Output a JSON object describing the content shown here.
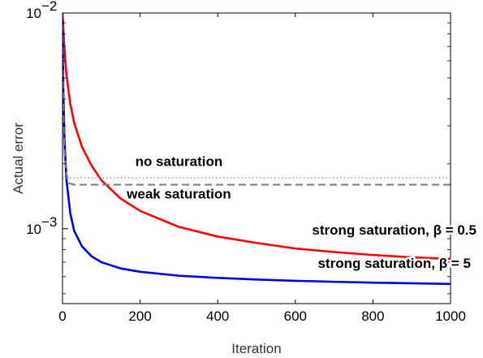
{
  "chart_data": {
    "type": "line",
    "xlabel": "Iteration",
    "ylabel": "Actual error",
    "xlim": [
      0,
      1000
    ],
    "ylim": [
      0.00045,
      0.01
    ],
    "yscale": "log",
    "grid": false,
    "x_ticks": [
      "0",
      "200",
      "400",
      "600",
      "800",
      "1000"
    ],
    "y_ticks": [
      {
        "base": "10",
        "exp": "−2",
        "value": 0.01
      },
      {
        "base": "10",
        "exp": "−3",
        "value": 0.001
      }
    ],
    "series": [
      {
        "color": "#ff0000",
        "style": "solid",
        "x": [
          0,
          5,
          10,
          20,
          30,
          50,
          75,
          100,
          150,
          200,
          300,
          400,
          500,
          600,
          700,
          800,
          900,
          1000
        ],
        "values": [
          0.01,
          0.0068,
          0.0052,
          0.0038,
          0.0031,
          0.0024,
          0.00196,
          0.00168,
          0.00138,
          0.00121,
          0.00102,
          0.00092,
          0.00086,
          0.00081,
          0.00078,
          0.000756,
          0.000738,
          0.000724
        ]
      },
      {
        "color": "#0000e6",
        "style": "solid",
        "x": [
          0,
          2,
          5,
          10,
          20,
          30,
          50,
          75,
          100,
          150,
          200,
          300,
          400,
          500,
          600,
          700,
          800,
          900,
          1000
        ],
        "values": [
          0.01,
          0.0045,
          0.0026,
          0.0017,
          0.00118,
          0.00098,
          0.00083,
          0.000745,
          0.0007,
          0.000655,
          0.000632,
          0.000606,
          0.000592,
          0.000582,
          0.000574,
          0.000568,
          0.000563,
          0.000559,
          0.000555
        ]
      },
      {
        "color": "#808080",
        "style": "dashed",
        "x": [
          0,
          1,
          2,
          3,
          5,
          8,
          15,
          30,
          1000
        ],
        "values": [
          0.01,
          0.0051,
          0.0036,
          0.0029,
          0.0023,
          0.0019,
          0.00163,
          0.0016,
          0.0016
        ]
      },
      {
        "color": "#808080",
        "style": "dotted",
        "x": [
          0,
          1000
        ],
        "values": [
          0.00172,
          0.00172
        ]
      }
    ],
    "annotations": [
      {
        "text": "no saturation",
        "x": 300,
        "y": 0.00195
      },
      {
        "text": "weak saturation",
        "x": 300,
        "y": 0.00138
      },
      {
        "text": "strong saturation, β = 0.5",
        "x": 855,
        "y": 0.00094
      },
      {
        "text": "strong saturation, β = 5",
        "x": 855,
        "y": 0.00066
      }
    ]
  }
}
